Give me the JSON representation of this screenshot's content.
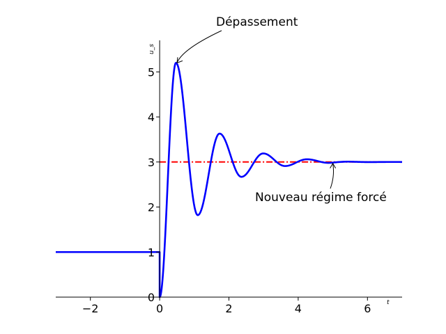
{
  "chart_data": {
    "type": "line",
    "title": "",
    "xlabel": "t",
    "ylabel": "u_s",
    "xlim": [
      -3,
      7
    ],
    "ylim": [
      0,
      5.7
    ],
    "grid": false,
    "xticks": [
      -2,
      0,
      2,
      4,
      6
    ],
    "yticks": [
      0,
      1,
      2,
      3,
      4,
      5
    ],
    "series": [
      {
        "style": "solid",
        "color": "#0000ff",
        "description": "step response: u_s = 1 for t<0, then damped oscillation toward 3",
        "initial_value": 1,
        "steady_state": 3,
        "response_peaks": [
          {
            "t": 0.47,
            "u": 5.2
          },
          {
            "t": 1.1,
            "u": 1.82
          },
          {
            "t": 1.73,
            "u": 3.63
          },
          {
            "t": 2.36,
            "u": 2.67
          },
          {
            "t": 2.99,
            "u": 3.19
          },
          {
            "t": 3.62,
            "u": 2.91
          },
          {
            "t": 4.25,
            "u": 3.06
          },
          {
            "t": 4.88,
            "u": 2.98
          }
        ]
      },
      {
        "style": "dashdot",
        "color": "#ff0000",
        "y": 3,
        "x_from": 0,
        "x_to": 7
      }
    ],
    "annotations": [
      {
        "text": "Dépassement",
        "point": {
          "x": 0.5,
          "y": 5.2
        }
      },
      {
        "text": "Nouveau régime forcé",
        "point": {
          "x": 5.0,
          "y": 3.0
        }
      }
    ]
  }
}
